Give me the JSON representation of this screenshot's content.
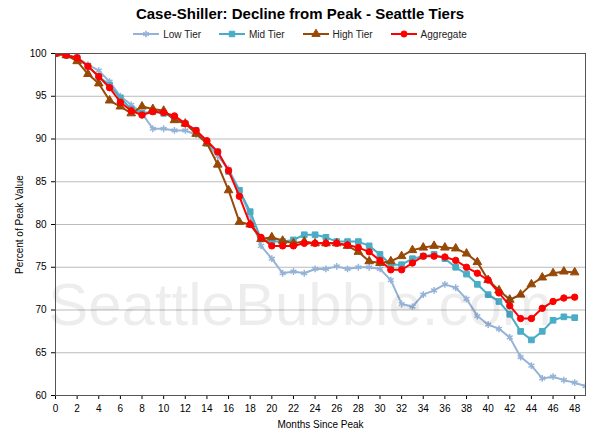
{
  "chart_data": {
    "type": "line",
    "title": "Case-Shiller: Decline from Peak - Seattle Tiers",
    "x_label": "Months Since Peak",
    "y_label": "Percent of Peak Value",
    "annotations": [
      "SeattleBubble.com"
    ],
    "x": [
      0,
      1,
      2,
      3,
      4,
      5,
      6,
      7,
      8,
      9,
      10,
      11,
      12,
      13,
      14,
      15,
      16,
      17,
      18,
      19,
      20,
      21,
      22,
      23,
      24,
      25,
      26,
      27,
      28,
      29,
      30,
      31,
      32,
      33,
      34,
      35,
      36,
      37,
      38,
      39,
      40,
      41,
      42,
      43,
      44,
      45,
      46,
      47,
      48,
      49
    ],
    "series": [
      {
        "name": "Low Tier",
        "color": "#95b3d7",
        "marker": "asterisk",
        "values": [
          100,
          99.8,
          99.5,
          98.7,
          98,
          96.7,
          95,
          94,
          93,
          91.2,
          91.2,
          91,
          91,
          90.5,
          89.5,
          88,
          86.5,
          84,
          81,
          77.5,
          76,
          74.3,
          74.5,
          74.3,
          74.8,
          74.8,
          75.1,
          74.8,
          75,
          75,
          74.8,
          73.5,
          70.7,
          70.4,
          71.8,
          72.3,
          73,
          72.6,
          71.3,
          69.3,
          68.3,
          67.8,
          66.8,
          64.5,
          63.5,
          62,
          62.2,
          61.8,
          61.5,
          61.1
        ]
      },
      {
        "name": "Mid Tier",
        "color": "#4bacc6",
        "marker": "square",
        "values": [
          100,
          99.8,
          99.5,
          98.5,
          97.3,
          96.3,
          94.8,
          93.5,
          93,
          93.2,
          93,
          92.5,
          91.8,
          91,
          89.5,
          88.5,
          86.2,
          84,
          81.5,
          78.3,
          78,
          78,
          78.2,
          78.8,
          78.8,
          78.5,
          78,
          78,
          78,
          77.5,
          76.5,
          75.3,
          75.3,
          76,
          76.3,
          76.5,
          76,
          75,
          74.2,
          73,
          71.8,
          71,
          69.5,
          67.5,
          66.5,
          67.5,
          68.8,
          69.2,
          69.1,
          null
        ]
      },
      {
        "name": "High Tier",
        "color": "#984807",
        "marker": "triangle",
        "values": [
          100,
          99.8,
          99.1,
          97.6,
          96.5,
          94.5,
          93.8,
          93,
          93.8,
          93.5,
          93.3,
          92.2,
          91.8,
          90.6,
          89.5,
          87,
          84,
          80.3,
          80,
          78.3,
          78.5,
          78.1,
          77.8,
          78,
          77.8,
          77.8,
          77.8,
          77.5,
          76.8,
          75.7,
          75.5,
          75.7,
          76.3,
          77,
          77.3,
          77.5,
          77.3,
          77.2,
          76.6,
          75.6,
          73.5,
          72.3,
          71.2,
          71.8,
          73,
          73.8,
          74.3,
          74.5,
          74.4,
          null
        ]
      },
      {
        "name": "Aggregate",
        "color": "#ff0000",
        "marker": "circle",
        "values": [
          100,
          99.8,
          99.5,
          98.5,
          97.3,
          96,
          94.3,
          93.3,
          92.8,
          93.2,
          93.1,
          92.7,
          91.8,
          91,
          89.8,
          88.5,
          86.3,
          83.3,
          80,
          78.5,
          77.5,
          77.5,
          77.5,
          77.8,
          77.8,
          77.8,
          77.8,
          77.6,
          77.3,
          76.8,
          75.8,
          74.7,
          74.7,
          75.5,
          76.3,
          76.3,
          76.2,
          75.8,
          75,
          74.3,
          73.5,
          72,
          70.5,
          69,
          69,
          70.2,
          71,
          71.4,
          71.5,
          null
        ]
      }
    ],
    "xlim": [
      0,
      49
    ],
    "xticks": [
      0,
      2,
      4,
      6,
      8,
      10,
      12,
      14,
      16,
      18,
      20,
      22,
      24,
      26,
      28,
      30,
      32,
      34,
      36,
      38,
      40,
      42,
      44,
      46,
      48
    ],
    "ylim": [
      60,
      100
    ],
    "yticks": [
      60,
      65,
      70,
      75,
      80,
      85,
      90,
      95,
      100
    ],
    "grid": true,
    "legend": "top"
  }
}
